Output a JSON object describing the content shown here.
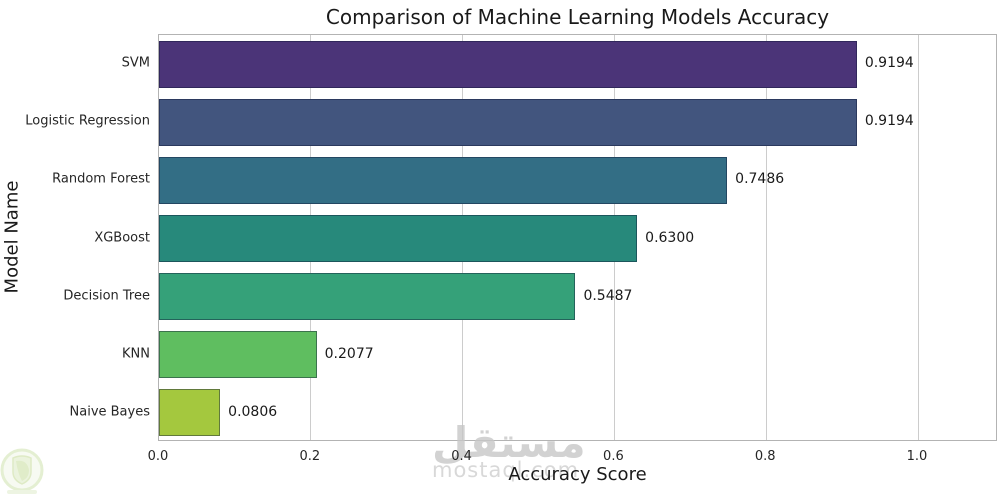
{
  "title": "Comparison of Machine Learning Models Accuracy",
  "chart_data": {
    "type": "bar",
    "orientation": "horizontal",
    "title": "Comparison of Machine Learning Models Accuracy",
    "xlabel": "Accuracy Score",
    "ylabel": "Model Name",
    "categories": [
      "SVM",
      "Logistic Regression",
      "Random Forest",
      "XGBoost",
      "Decision Tree",
      "KNN",
      "Naive Bayes"
    ],
    "values": [
      0.9194,
      0.9194,
      0.7486,
      0.63,
      0.5487,
      0.2077,
      0.0806
    ],
    "value_labels": [
      "0.9194",
      "0.9194",
      "0.7486",
      "0.6300",
      "0.5487",
      "0.2077",
      "0.0806"
    ],
    "bar_colors": [
      "#4b3478",
      "#42557e",
      "#336e85",
      "#27897b",
      "#35a179",
      "#5fbe60",
      "#a4c83e"
    ],
    "xlim": [
      0.0,
      1.1
    ],
    "xticks": [
      "0.0",
      "0.2",
      "0.4",
      "0.6",
      "0.8",
      "1.0"
    ],
    "xtick_values": [
      0.0,
      0.2,
      0.4,
      0.6,
      0.8,
      1.0
    ],
    "grid": "vertical-gridlines-on",
    "legend": "none"
  },
  "watermark": {
    "arabic": "مستقل",
    "latin": "mostaql.com"
  },
  "colors": {
    "grid": "#cccccc",
    "spine": "#b3b3b3",
    "text": "#262626"
  }
}
